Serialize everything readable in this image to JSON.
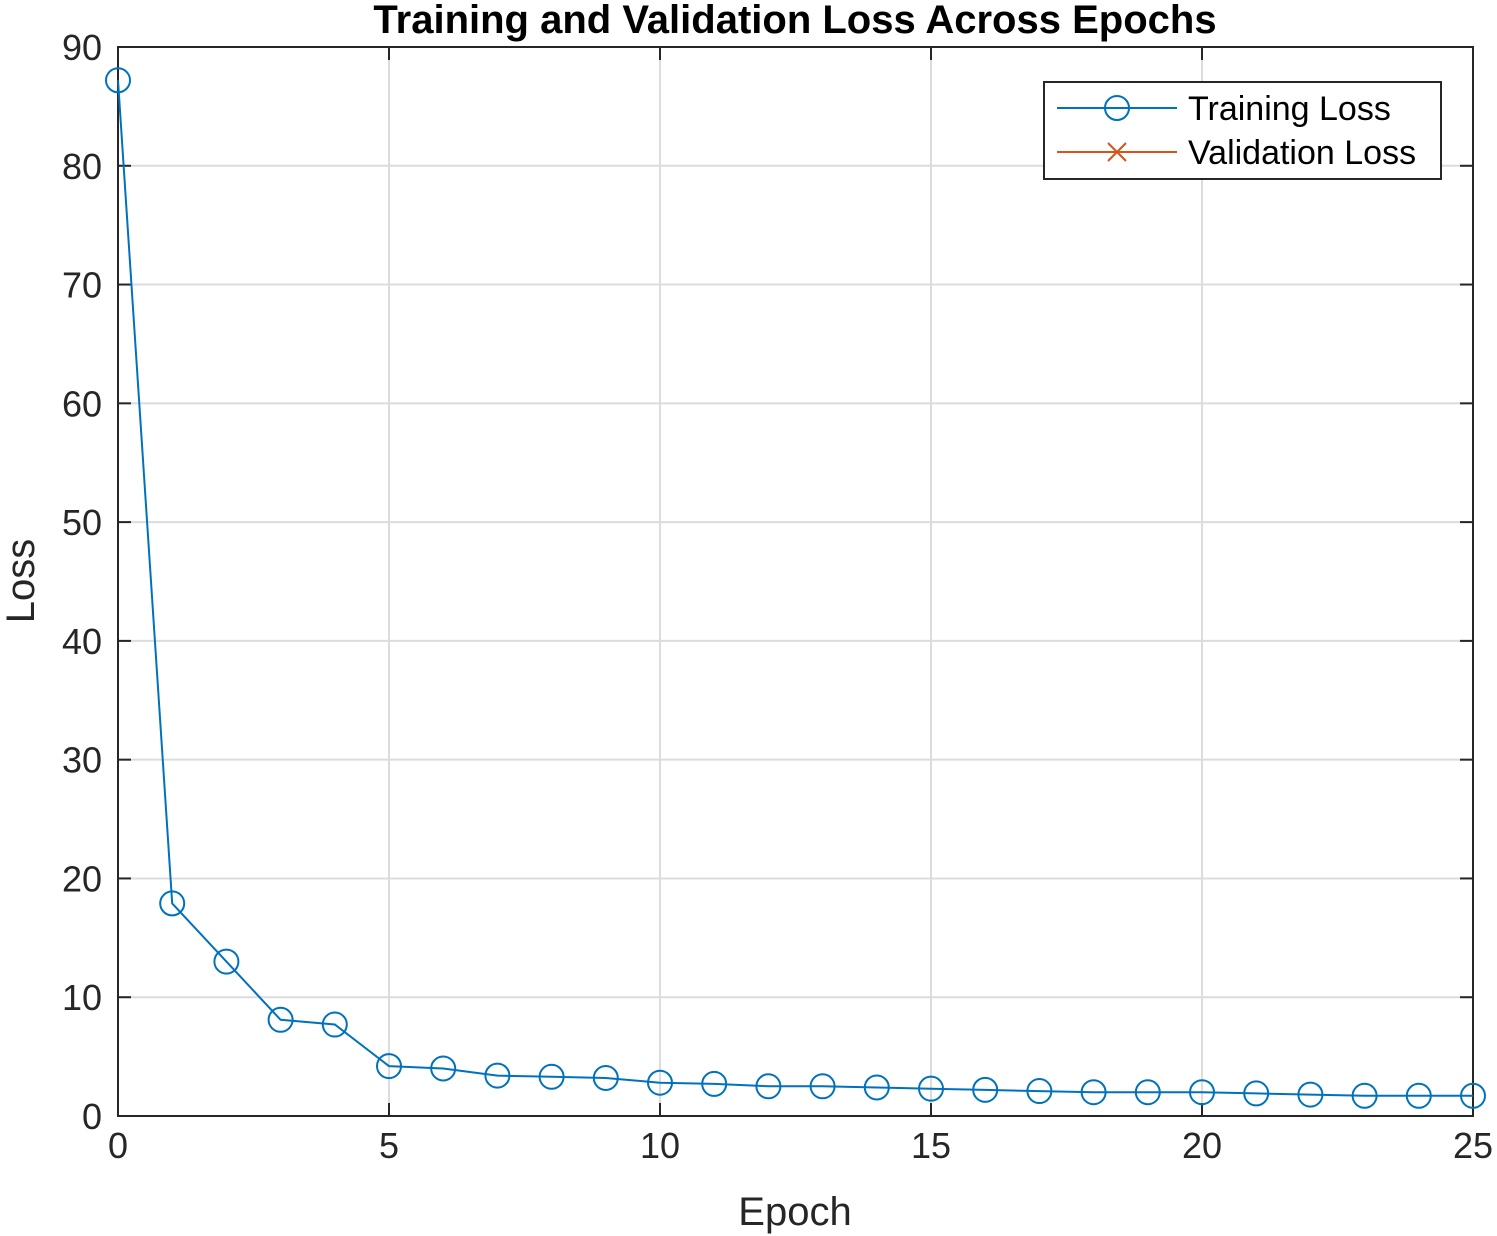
{
  "chart_data": {
    "type": "line",
    "title": "Training and Validation Loss Across Epochs",
    "xlabel": "Epoch",
    "ylabel": "Loss",
    "xlim": [
      0,
      25
    ],
    "ylim": [
      0,
      90
    ],
    "xticks": [
      "0",
      "5",
      "10",
      "15",
      "20",
      "25"
    ],
    "yticks": [
      "0",
      "10",
      "20",
      "30",
      "40",
      "50",
      "60",
      "70",
      "80",
      "90"
    ],
    "grid": true,
    "legend_position": "top-right",
    "series": [
      {
        "name": "Training Loss",
        "color": "#0072BD",
        "marker": "circle",
        "x": [
          0,
          1,
          2,
          3,
          4,
          5,
          6,
          7,
          8,
          9,
          10,
          11,
          12,
          13,
          14,
          15,
          16,
          17,
          18,
          19,
          20,
          21,
          22,
          23,
          24,
          25
        ],
        "y": [
          87.2,
          17.9,
          13.0,
          8.1,
          7.7,
          4.2,
          4.0,
          3.4,
          3.3,
          3.2,
          2.8,
          2.7,
          2.5,
          2.5,
          2.4,
          2.3,
          2.2,
          2.1,
          2.0,
          2.0,
          2.0,
          1.9,
          1.8,
          1.7,
          1.7,
          1.7
        ]
      },
      {
        "name": "Validation Loss",
        "color": "#D95319",
        "marker": "x",
        "x": [],
        "y": []
      }
    ]
  }
}
